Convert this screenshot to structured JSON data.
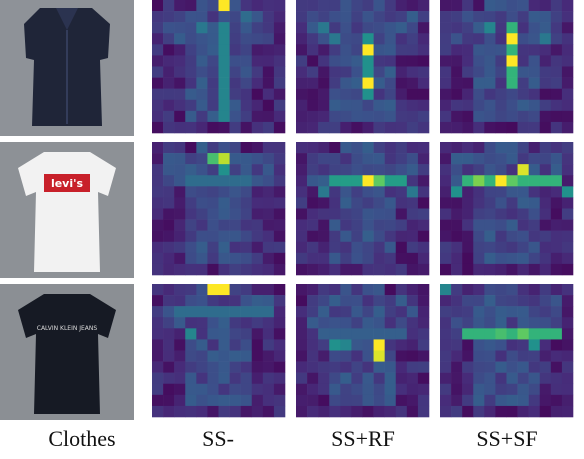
{
  "columns": [
    "Clothes",
    "SS-",
    "SS+RF",
    "SS+SF"
  ],
  "logos": {
    "levis": "levi's",
    "calvin": "CALVIN KLEIN JEANS"
  }
}
